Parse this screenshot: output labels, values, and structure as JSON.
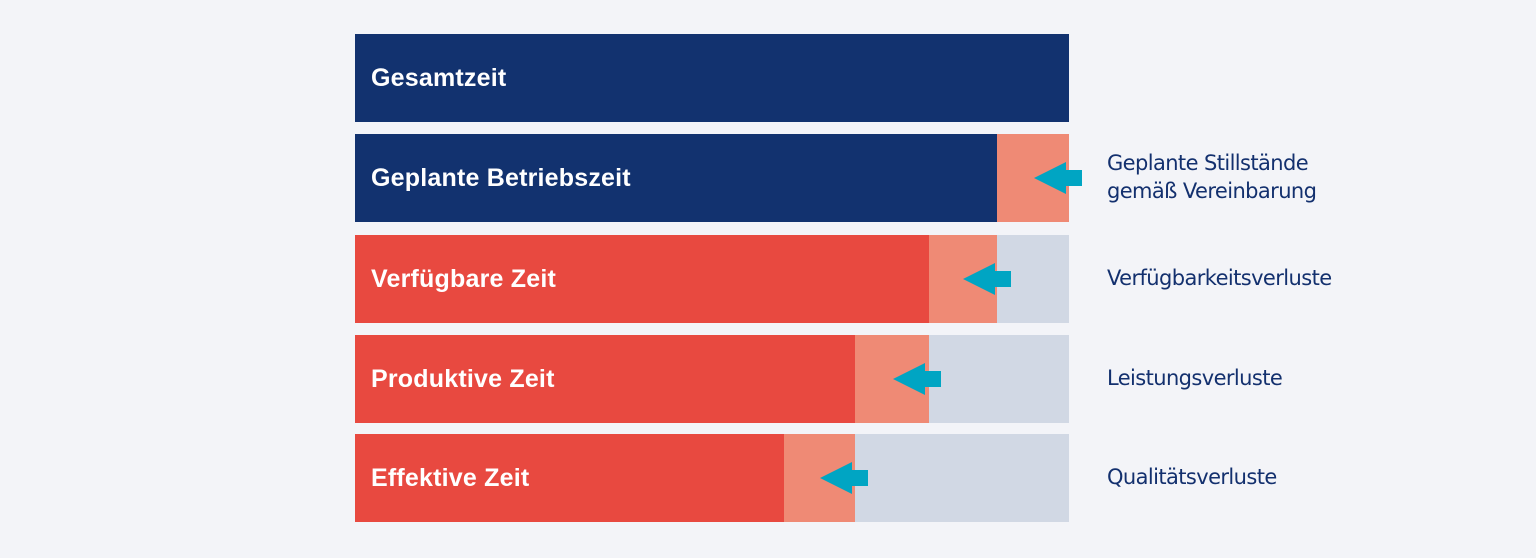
{
  "colors": {
    "navy": "#12326f",
    "red": "#e84940",
    "salmon": "#ef8a75",
    "gray": "#d1d8e4",
    "arrow": "#00a5c3",
    "text": "#13306e"
  },
  "rows": [
    {
      "label": "Gesamtzeit",
      "main_share": 100,
      "main_color": "navy",
      "loss_share": 0,
      "note": ""
    },
    {
      "label": "Geplante Betriebszeit",
      "main_share": 89.9,
      "main_color": "navy",
      "loss_share": 10.1,
      "note_lines": [
        "Geplante Stillstände",
        "gemäß Vereinbarung"
      ]
    },
    {
      "label": "Verfügbare Zeit",
      "main_share": 80.4,
      "main_color": "red",
      "loss_share": 9.5,
      "note_lines": [
        "Verfügbarkeitsverluste"
      ]
    },
    {
      "label": "Produktive Zeit",
      "main_share": 70.0,
      "main_color": "red",
      "loss_share": 10.4,
      "note_lines": [
        "Leistungsverluste"
      ]
    },
    {
      "label": "Effektive Zeit",
      "main_share": 60.1,
      "main_color": "red",
      "loss_share": 9.9,
      "note_lines": [
        "Qualitätsverluste"
      ]
    }
  ]
}
